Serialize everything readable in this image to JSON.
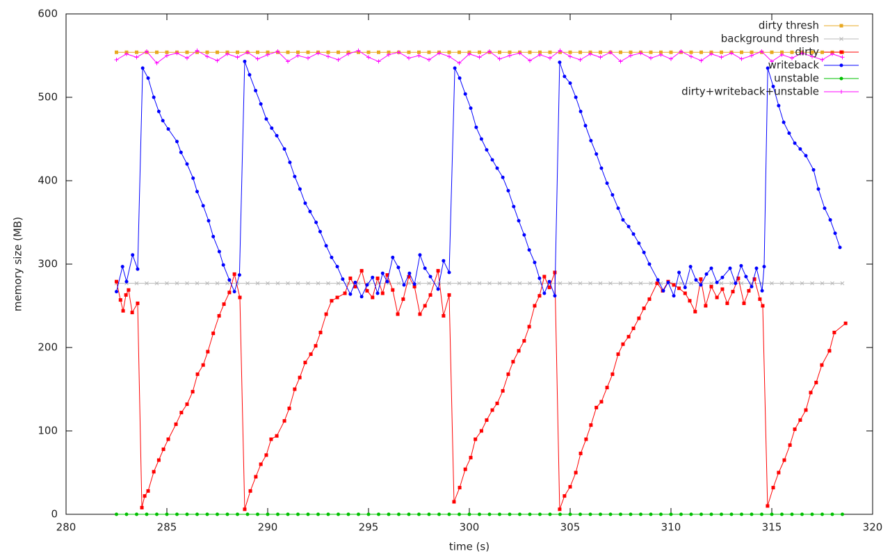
{
  "chart_data": {
    "type": "line",
    "xlabel": "time (s)",
    "ylabel": "memory size (MB)",
    "xlim": [
      280,
      320
    ],
    "xticks": [
      280,
      285,
      290,
      295,
      300,
      305,
      310,
      315,
      320
    ],
    "ylim": [
      0,
      600
    ],
    "yticks": [
      0,
      100,
      200,
      300,
      400,
      500,
      600
    ],
    "grid": false,
    "legend": "top-right",
    "series": [
      {
        "name": "dirty thresh",
        "color": "#e8a820",
        "marker": "square",
        "x": [
          282.5,
          283,
          283.5,
          284,
          284.5,
          285,
          285.5,
          286,
          286.5,
          287,
          287.5,
          288,
          288.5,
          289,
          289.5,
          290,
          290.5,
          291,
          291.5,
          292,
          292.5,
          293,
          293.5,
          294,
          294.5,
          295,
          295.5,
          296,
          296.5,
          297,
          297.5,
          298,
          298.5,
          299,
          299.5,
          300,
          300.5,
          301,
          301.5,
          302,
          302.5,
          303,
          303.5,
          304,
          304.5,
          305,
          305.5,
          306,
          306.5,
          307,
          307.5,
          308,
          308.5,
          309,
          309.5,
          310,
          310.5,
          311,
          311.5,
          312,
          312.5,
          313,
          313.5,
          314,
          314.5,
          315,
          315.5,
          316,
          316.5,
          317,
          317.5,
          318,
          318.5
        ],
        "values": [
          554,
          554,
          554,
          554,
          554,
          554,
          554,
          554,
          554,
          554,
          554,
          554,
          554,
          554,
          554,
          554,
          554,
          554,
          554,
          554,
          554,
          554,
          554,
          554,
          554,
          554,
          554,
          554,
          554,
          554,
          554,
          554,
          554,
          554,
          554,
          554,
          554,
          554,
          554,
          554,
          554,
          554,
          554,
          554,
          554,
          554,
          554,
          554,
          554,
          554,
          554,
          554,
          554,
          554,
          554,
          554,
          554,
          554,
          554,
          554,
          554,
          554,
          554,
          554,
          554,
          554,
          554,
          554,
          554,
          554,
          554,
          554,
          554
        ]
      },
      {
        "name": "background thresh",
        "color": "#b8b8b8",
        "marker": "x",
        "x": [
          282.5,
          283,
          283.5,
          284,
          284.5,
          285,
          285.5,
          286,
          286.5,
          287,
          287.5,
          288,
          288.5,
          289,
          289.5,
          290,
          290.5,
          291,
          291.5,
          292,
          292.5,
          293,
          293.5,
          294,
          294.5,
          295,
          295.5,
          296,
          296.5,
          297,
          297.5,
          298,
          298.5,
          299,
          299.5,
          300,
          300.5,
          301,
          301.5,
          302,
          302.5,
          303,
          303.5,
          304,
          304.5,
          305,
          305.5,
          306,
          306.5,
          307,
          307.5,
          308,
          308.5,
          309,
          309.5,
          310,
          310.5,
          311,
          311.5,
          312,
          312.5,
          313,
          313.5,
          314,
          314.5,
          315,
          315.5,
          316,
          316.5,
          317,
          317.5,
          318,
          318.5
        ],
        "values": [
          277,
          277,
          277,
          277,
          277,
          277,
          277,
          277,
          277,
          277,
          277,
          277,
          277,
          277,
          277,
          277,
          277,
          277,
          277,
          277,
          277,
          277,
          277,
          277,
          277,
          277,
          277,
          277,
          277,
          277,
          277,
          277,
          277,
          277,
          277,
          277,
          277,
          277,
          277,
          277,
          277,
          277,
          277,
          277,
          277,
          277,
          277,
          277,
          277,
          277,
          277,
          277,
          277,
          277,
          277,
          277,
          277,
          277,
          277,
          277,
          277,
          277,
          277,
          277,
          277,
          277,
          277,
          277,
          277,
          277,
          277,
          277,
          277
        ]
      },
      {
        "name": "dirty",
        "color": "#ff0000",
        "marker": "square",
        "x": [
          282.5,
          282.7,
          282.83,
          282.97,
          283.1,
          283.28,
          283.55,
          283.76,
          283.9,
          284.07,
          284.35,
          284.6,
          284.83,
          285.07,
          285.45,
          285.72,
          286.0,
          286.28,
          286.52,
          286.8,
          287.03,
          287.3,
          287.59,
          287.83,
          288.1,
          288.35,
          288.62,
          288.86,
          289.14,
          289.41,
          289.66,
          289.93,
          290.17,
          290.45,
          290.83,
          291.07,
          291.34,
          291.59,
          291.86,
          292.14,
          292.38,
          292.62,
          292.9,
          293.17,
          293.45,
          293.83,
          294.1,
          294.34,
          294.66,
          294.93,
          295.2,
          295.45,
          295.7,
          295.93,
          296.2,
          296.45,
          296.72,
          297.0,
          297.28,
          297.55,
          297.8,
          298.07,
          298.45,
          298.72,
          299.0,
          299.24,
          299.52,
          299.8,
          300.07,
          300.3,
          300.6,
          300.86,
          301.14,
          301.38,
          301.66,
          301.93,
          302.17,
          302.45,
          302.72,
          302.97,
          303.24,
          303.48,
          303.72,
          303.97,
          304.24,
          304.48,
          304.72,
          305.0,
          305.28,
          305.52,
          305.79,
          306.03,
          306.3,
          306.55,
          306.83,
          307.1,
          307.38,
          307.62,
          307.9,
          308.14,
          308.41,
          308.66,
          308.93,
          309.31,
          309.59,
          309.86,
          310.14,
          310.4,
          310.7,
          310.93,
          311.2,
          311.48,
          311.72,
          312.0,
          312.28,
          312.55,
          312.79,
          313.07,
          313.34,
          313.62,
          313.86,
          314.14,
          314.41,
          314.55,
          314.79,
          315.07,
          315.34,
          315.62,
          315.9,
          316.14,
          316.41,
          316.69,
          316.93,
          317.2,
          317.48,
          317.86,
          318.1,
          318.66
        ],
        "values": [
          279,
          257,
          244,
          263,
          269,
          242,
          253,
          8,
          22,
          28,
          51,
          65,
          78,
          90,
          108,
          122,
          132,
          147,
          168,
          179,
          195,
          217,
          238,
          252,
          266,
          288,
          260,
          6,
          28,
          45,
          60,
          71,
          90,
          94,
          112,
          127,
          150,
          164,
          182,
          192,
          202,
          218,
          240,
          256,
          260,
          265,
          283,
          273,
          292,
          268,
          260,
          283,
          265,
          287,
          269,
          240,
          258,
          285,
          273,
          240,
          250,
          263,
          292,
          238,
          263,
          15,
          32,
          54,
          68,
          90,
          100,
          113,
          125,
          133,
          148,
          168,
          183,
          196,
          208,
          225,
          250,
          262,
          285,
          272,
          290,
          6,
          22,
          33,
          50,
          73,
          90,
          107,
          128,
          135,
          152,
          168,
          192,
          204,
          213,
          223,
          235,
          247,
          258,
          277,
          268,
          279,
          275,
          271,
          265,
          256,
          243,
          282,
          250,
          273,
          260,
          270,
          253,
          267,
          283,
          253,
          268,
          282,
          258,
          250,
          10,
          32,
          50,
          65,
          83,
          102,
          113,
          125,
          146,
          158,
          179,
          196,
          218,
          229
        ]
      },
      {
        "name": "writeback",
        "color": "#0000ff",
        "marker": "circle",
        "x": [
          282.5,
          282.8,
          283.0,
          283.3,
          283.55,
          283.8,
          284.07,
          284.35,
          284.6,
          284.8,
          285.07,
          285.5,
          285.7,
          286.0,
          286.3,
          286.5,
          286.8,
          287.07,
          287.3,
          287.6,
          287.8,
          288.1,
          288.35,
          288.6,
          288.86,
          289.1,
          289.4,
          289.66,
          289.93,
          290.2,
          290.45,
          290.83,
          291.1,
          291.34,
          291.6,
          291.86,
          292.1,
          292.4,
          292.6,
          292.9,
          293.17,
          293.45,
          293.72,
          294.1,
          294.34,
          294.66,
          294.93,
          295.2,
          295.45,
          295.7,
          295.93,
          296.2,
          296.48,
          296.76,
          297.03,
          297.28,
          297.55,
          297.8,
          298.07,
          298.45,
          298.72,
          299.0,
          299.28,
          299.52,
          299.8,
          300.07,
          300.34,
          300.6,
          300.86,
          301.14,
          301.38,
          301.66,
          301.93,
          302.2,
          302.45,
          302.72,
          302.97,
          303.24,
          303.48,
          303.72,
          303.97,
          304.24,
          304.48,
          304.72,
          305.0,
          305.28,
          305.52,
          305.76,
          306.03,
          306.3,
          306.55,
          306.83,
          307.1,
          307.38,
          307.62,
          307.9,
          308.14,
          308.41,
          308.66,
          308.93,
          309.35,
          309.62,
          309.86,
          310.14,
          310.4,
          310.7,
          310.97,
          311.24,
          311.48,
          311.76,
          312.0,
          312.28,
          312.55,
          312.93,
          313.2,
          313.48,
          313.72,
          314.0,
          314.24,
          314.52,
          314.62,
          314.8,
          315.07,
          315.34,
          315.59,
          315.86,
          316.14,
          316.41,
          316.69,
          317.07,
          317.31,
          317.62,
          317.9,
          318.14,
          318.38
        ],
        "values": [
          267,
          297,
          279,
          311,
          294,
          535,
          523,
          500,
          483,
          472,
          462,
          447,
          434,
          420,
          403,
          387,
          370,
          352,
          333,
          315,
          299,
          281,
          267,
          287,
          543,
          527,
          508,
          492,
          474,
          463,
          454,
          438,
          422,
          405,
          390,
          373,
          363,
          350,
          339,
          322,
          308,
          297,
          282,
          264,
          278,
          261,
          275,
          284,
          265,
          289,
          279,
          308,
          296,
          275,
          289,
          276,
          311,
          295,
          285,
          270,
          304,
          290,
          535,
          523,
          504,
          487,
          464,
          450,
          437,
          425,
          415,
          404,
          388,
          369,
          352,
          335,
          317,
          302,
          283,
          265,
          279,
          262,
          542,
          525,
          517,
          500,
          483,
          466,
          448,
          432,
          415,
          397,
          383,
          367,
          353,
          345,
          336,
          325,
          314,
          300,
          281,
          268,
          278,
          262,
          290,
          272,
          297,
          281,
          275,
          288,
          295,
          278,
          284,
          295,
          277,
          298,
          285,
          273,
          295,
          268,
          297,
          535,
          513,
          490,
          470,
          457,
          445,
          438,
          430,
          413,
          390,
          367,
          353,
          337,
          320
        ]
      },
      {
        "name": "unstable",
        "color": "#00c000",
        "marker": "circle",
        "x": [
          282.5,
          283,
          283.5,
          284,
          284.5,
          285,
          285.5,
          286,
          286.5,
          287,
          287.5,
          288,
          288.5,
          289,
          289.5,
          290,
          290.5,
          291,
          291.5,
          292,
          292.5,
          293,
          293.5,
          294,
          294.5,
          295,
          295.5,
          296,
          296.5,
          297,
          297.5,
          298,
          298.5,
          299,
          299.5,
          300,
          300.5,
          301,
          301.5,
          302,
          302.5,
          303,
          303.5,
          304,
          304.5,
          305,
          305.5,
          306,
          306.5,
          307,
          307.5,
          308,
          308.5,
          309,
          309.5,
          310,
          310.5,
          311,
          311.5,
          312,
          312.5,
          313,
          313.5,
          314,
          314.5,
          315,
          315.5,
          316,
          316.5,
          317,
          317.5,
          318,
          318.5
        ],
        "values": [
          0,
          0,
          0,
          0,
          0,
          0,
          0,
          0,
          0,
          0,
          0,
          0,
          0,
          0,
          0,
          0,
          0,
          0,
          0,
          0,
          0,
          0,
          0,
          0,
          0,
          0,
          0,
          0,
          0,
          0,
          0,
          0,
          0,
          0,
          0,
          0,
          0,
          0,
          0,
          0,
          0,
          0,
          0,
          0,
          0,
          0,
          0,
          0,
          0,
          0,
          0,
          0,
          0,
          0,
          0,
          0,
          0,
          0,
          0,
          0,
          0,
          0,
          0,
          0,
          0,
          0,
          0,
          0,
          0,
          0,
          0,
          0,
          0
        ]
      },
      {
        "name": "dirty+writeback+unstable",
        "color": "#ff00ff",
        "marker": "plus",
        "x": [
          282.5,
          283,
          283.5,
          284,
          284.5,
          285,
          285.5,
          286,
          286.5,
          287,
          287.5,
          288,
          288.5,
          289,
          289.5,
          290,
          290.5,
          291,
          291.5,
          292,
          292.5,
          293,
          293.5,
          294,
          294.5,
          295,
          295.5,
          296,
          296.5,
          297,
          297.5,
          298,
          298.5,
          299,
          299.5,
          300,
          300.5,
          301,
          301.5,
          302,
          302.5,
          303,
          303.5,
          304,
          304.5,
          305,
          305.5,
          306,
          306.5,
          307,
          307.5,
          308,
          308.5,
          309,
          309.5,
          310,
          310.5,
          311,
          311.5,
          312,
          312.5,
          313,
          313.5,
          314,
          314.5,
          315,
          315.5,
          316,
          316.5,
          317,
          317.5,
          318,
          318.5
        ],
        "values": [
          545,
          552,
          548,
          555,
          541,
          550,
          553,
          547,
          556,
          549,
          544,
          552,
          548,
          554,
          546,
          551,
          555,
          543,
          550,
          547,
          553,
          549,
          545,
          552,
          556,
          548,
          543,
          551,
          554,
          547,
          550,
          545,
          553,
          549,
          541,
          552,
          548,
          555,
          546,
          550,
          553,
          544,
          551,
          547,
          556,
          549,
          545,
          552,
          548,
          554,
          543,
          550,
          553,
          547,
          551,
          546,
          555,
          549,
          544,
          552,
          548,
          553,
          546,
          550,
          555,
          543,
          551,
          547,
          553,
          549,
          545,
          552,
          548
        ]
      }
    ]
  }
}
